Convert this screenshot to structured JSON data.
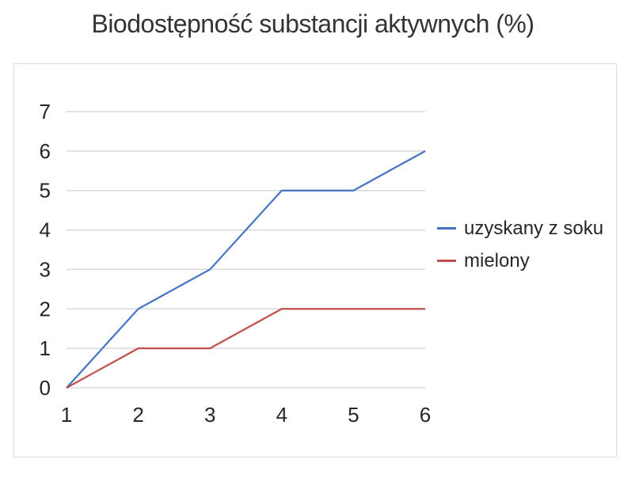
{
  "chart_data": {
    "type": "line",
    "title": "Biodostępność substancji aktywnych (%)",
    "xlabel": "",
    "ylabel": "",
    "x": [
      1,
      2,
      3,
      4,
      5,
      6
    ],
    "x_tick_labels": [
      "1",
      "2",
      "3",
      "4",
      "5",
      "6"
    ],
    "y_tick_labels": [
      "0",
      "1",
      "2",
      "3",
      "4",
      "5",
      "6",
      "7"
    ],
    "ylim": [
      0,
      7
    ],
    "grid": true,
    "legend_position": "right",
    "series": [
      {
        "name": "uzyskany z soku",
        "color": "#4472c4",
        "values": [
          0,
          2,
          3,
          5,
          5,
          6
        ]
      },
      {
        "name": "mielony",
        "color": "#c0504d",
        "values": [
          0,
          1,
          1,
          2,
          2,
          2
        ]
      }
    ]
  }
}
